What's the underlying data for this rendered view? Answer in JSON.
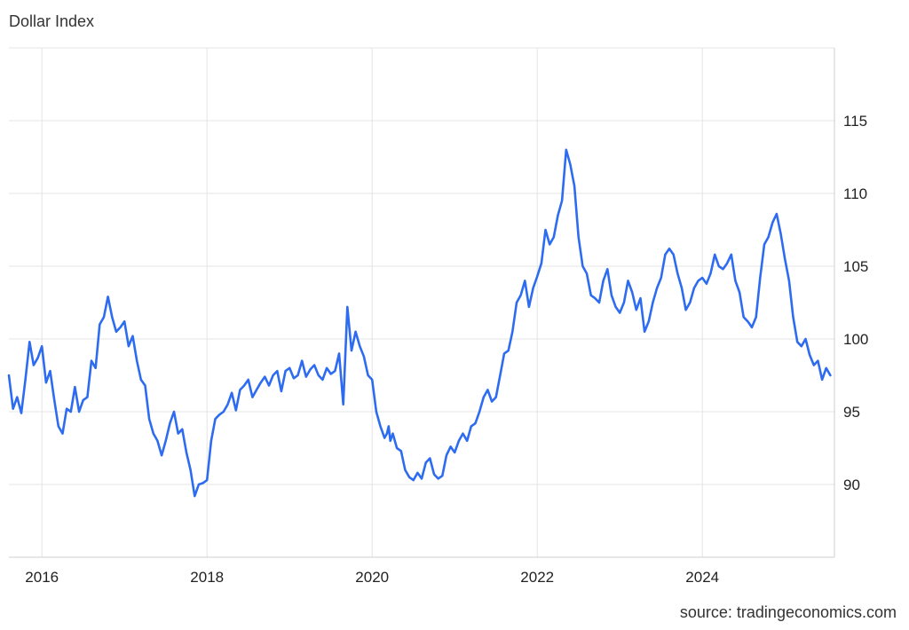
{
  "chart_title": "Dollar Index",
  "source": "source: tradingeconomics.com",
  "colors": {
    "line": "#2d6cf0",
    "grid": "#e4e4e4"
  },
  "chart_data": {
    "type": "line",
    "title": "Dollar Index",
    "xlabel": "",
    "ylabel": "",
    "x_tick_labels": [
      "2016",
      "2018",
      "2020",
      "2022",
      "2024"
    ],
    "x_tick_values": [
      2016,
      2018,
      2020,
      2022,
      2024
    ],
    "y_tick_labels": [
      "90",
      "95",
      "100",
      "105",
      "110",
      "115"
    ],
    "y_tick_values": [
      90,
      95,
      100,
      105,
      110,
      115
    ],
    "xlim": [
      2015.6,
      2025.6
    ],
    "ylim": [
      85,
      120
    ],
    "grid": true,
    "y_axis_side": "right",
    "series": [
      {
        "x": [
          2015.6,
          2015.65,
          2015.7,
          2015.75,
          2015.8,
          2015.85,
          2015.9,
          2015.95,
          2016.0,
          2016.05,
          2016.1,
          2016.15,
          2016.2,
          2016.25,
          2016.3,
          2016.35,
          2016.4,
          2016.45,
          2016.5,
          2016.55,
          2016.6,
          2016.65,
          2016.7,
          2016.75,
          2016.8,
          2016.85,
          2016.9,
          2016.95,
          2017.0,
          2017.05,
          2017.1,
          2017.15,
          2017.2,
          2017.25,
          2017.3,
          2017.35,
          2017.4,
          2017.45,
          2017.5,
          2017.55,
          2017.6,
          2017.65,
          2017.7,
          2017.75,
          2017.8,
          2017.85,
          2017.9,
          2017.95,
          2018.0,
          2018.05,
          2018.1,
          2018.15,
          2018.2,
          2018.25,
          2018.3,
          2018.35,
          2018.4,
          2018.45,
          2018.5,
          2018.55,
          2018.6,
          2018.65,
          2018.7,
          2018.75,
          2018.8,
          2018.85,
          2018.9,
          2018.95,
          2019.0,
          2019.05,
          2019.1,
          2019.15,
          2019.2,
          2019.25,
          2019.3,
          2019.35,
          2019.4,
          2019.45,
          2019.5,
          2019.55,
          2019.6,
          2019.65,
          2019.7,
          2019.75,
          2019.8,
          2019.85,
          2019.9,
          2019.95,
          2020.0,
          2020.05,
          2020.1,
          2020.15,
          2020.18,
          2020.2,
          2020.22,
          2020.25,
          2020.3,
          2020.35,
          2020.4,
          2020.45,
          2020.5,
          2020.55,
          2020.6,
          2020.65,
          2020.7,
          2020.75,
          2020.8,
          2020.85,
          2020.9,
          2020.95,
          2021.0,
          2021.05,
          2021.1,
          2021.15,
          2021.2,
          2021.25,
          2021.3,
          2021.35,
          2021.4,
          2021.45,
          2021.5,
          2021.55,
          2021.6,
          2021.65,
          2021.7,
          2021.75,
          2021.8,
          2021.85,
          2021.9,
          2021.95,
          2022.0,
          2022.05,
          2022.1,
          2022.15,
          2022.2,
          2022.25,
          2022.3,
          2022.35,
          2022.4,
          2022.45,
          2022.5,
          2022.55,
          2022.6,
          2022.65,
          2022.7,
          2022.75,
          2022.8,
          2022.85,
          2022.9,
          2022.95,
          2023.0,
          2023.05,
          2023.1,
          2023.15,
          2023.2,
          2023.25,
          2023.3,
          2023.35,
          2023.4,
          2023.45,
          2023.5,
          2023.55,
          2023.6,
          2023.65,
          2023.7,
          2023.75,
          2023.8,
          2023.85,
          2023.9,
          2023.95,
          2024.0,
          2024.05,
          2024.1,
          2024.15,
          2024.2,
          2024.25,
          2024.3,
          2024.35,
          2024.4,
          2024.45,
          2024.5,
          2024.55,
          2024.6,
          2024.65,
          2024.7,
          2024.75,
          2024.8,
          2024.85,
          2024.9,
          2024.95,
          2025.0,
          2025.05,
          2025.1,
          2025.15,
          2025.2,
          2025.25,
          2025.3,
          2025.35,
          2025.4,
          2025.45,
          2025.5,
          2025.55
        ],
        "values": [
          97.5,
          95.2,
          96.0,
          94.9,
          97.2,
          99.8,
          98.2,
          98.7,
          99.5,
          97.0,
          97.8,
          95.8,
          94.0,
          93.5,
          95.2,
          95.0,
          96.7,
          95.0,
          95.8,
          96.0,
          98.5,
          98.0,
          101.0,
          101.5,
          102.9,
          101.5,
          100.5,
          100.8,
          101.2,
          99.5,
          100.2,
          98.5,
          97.2,
          96.8,
          94.5,
          93.5,
          93.0,
          92.0,
          93.0,
          94.2,
          95.0,
          93.5,
          93.8,
          92.2,
          91.0,
          89.2,
          90.0,
          90.1,
          90.3,
          93.0,
          94.5,
          94.8,
          95.0,
          95.5,
          96.3,
          95.1,
          96.5,
          96.8,
          97.2,
          96.0,
          96.5,
          97.0,
          97.4,
          96.8,
          97.5,
          97.8,
          96.4,
          97.8,
          98.0,
          97.3,
          97.5,
          98.5,
          97.4,
          97.9,
          98.2,
          97.5,
          97.2,
          98.0,
          97.6,
          97.8,
          99.0,
          95.5,
          102.2,
          99.2,
          100.5,
          99.5,
          98.8,
          97.5,
          97.2,
          95.0,
          94.0,
          93.2,
          93.5,
          94.0,
          93.0,
          93.5,
          92.5,
          92.3,
          91.0,
          90.5,
          90.3,
          90.8,
          90.4,
          91.5,
          91.8,
          90.7,
          90.4,
          90.6,
          92.0,
          92.6,
          92.2,
          93.0,
          93.5,
          93.0,
          94.0,
          94.2,
          95.0,
          96.0,
          96.5,
          95.7,
          96.0,
          97.5,
          99.0,
          99.2,
          100.5,
          102.5,
          103.0,
          104.0,
          102.2,
          103.5,
          104.3,
          105.2,
          107.5,
          106.5,
          107.0,
          108.5,
          109.5,
          113.0,
          112.0,
          110.5,
          107.0,
          105.0,
          104.5,
          103.0,
          102.8,
          102.5,
          104.0,
          104.8,
          103.0,
          102.2,
          101.8,
          102.5,
          104.0,
          103.2,
          102.0,
          102.8,
          100.5,
          101.2,
          102.5,
          103.5,
          104.2,
          105.8,
          106.2,
          105.8,
          104.5,
          103.5,
          102.0,
          102.5,
          103.5,
          104.0,
          104.2,
          103.8,
          104.5,
          105.8,
          105.0,
          104.8,
          105.2,
          105.8,
          104.0,
          103.2,
          101.5,
          101.2,
          100.8,
          101.5,
          104.2,
          106.5,
          107.0,
          108.0,
          108.6,
          107.2,
          105.5,
          104.0,
          101.5,
          99.8,
          99.5,
          100.0,
          98.9,
          98.2,
          98.5,
          97.2,
          98.0,
          97.5
        ]
      }
    ]
  }
}
